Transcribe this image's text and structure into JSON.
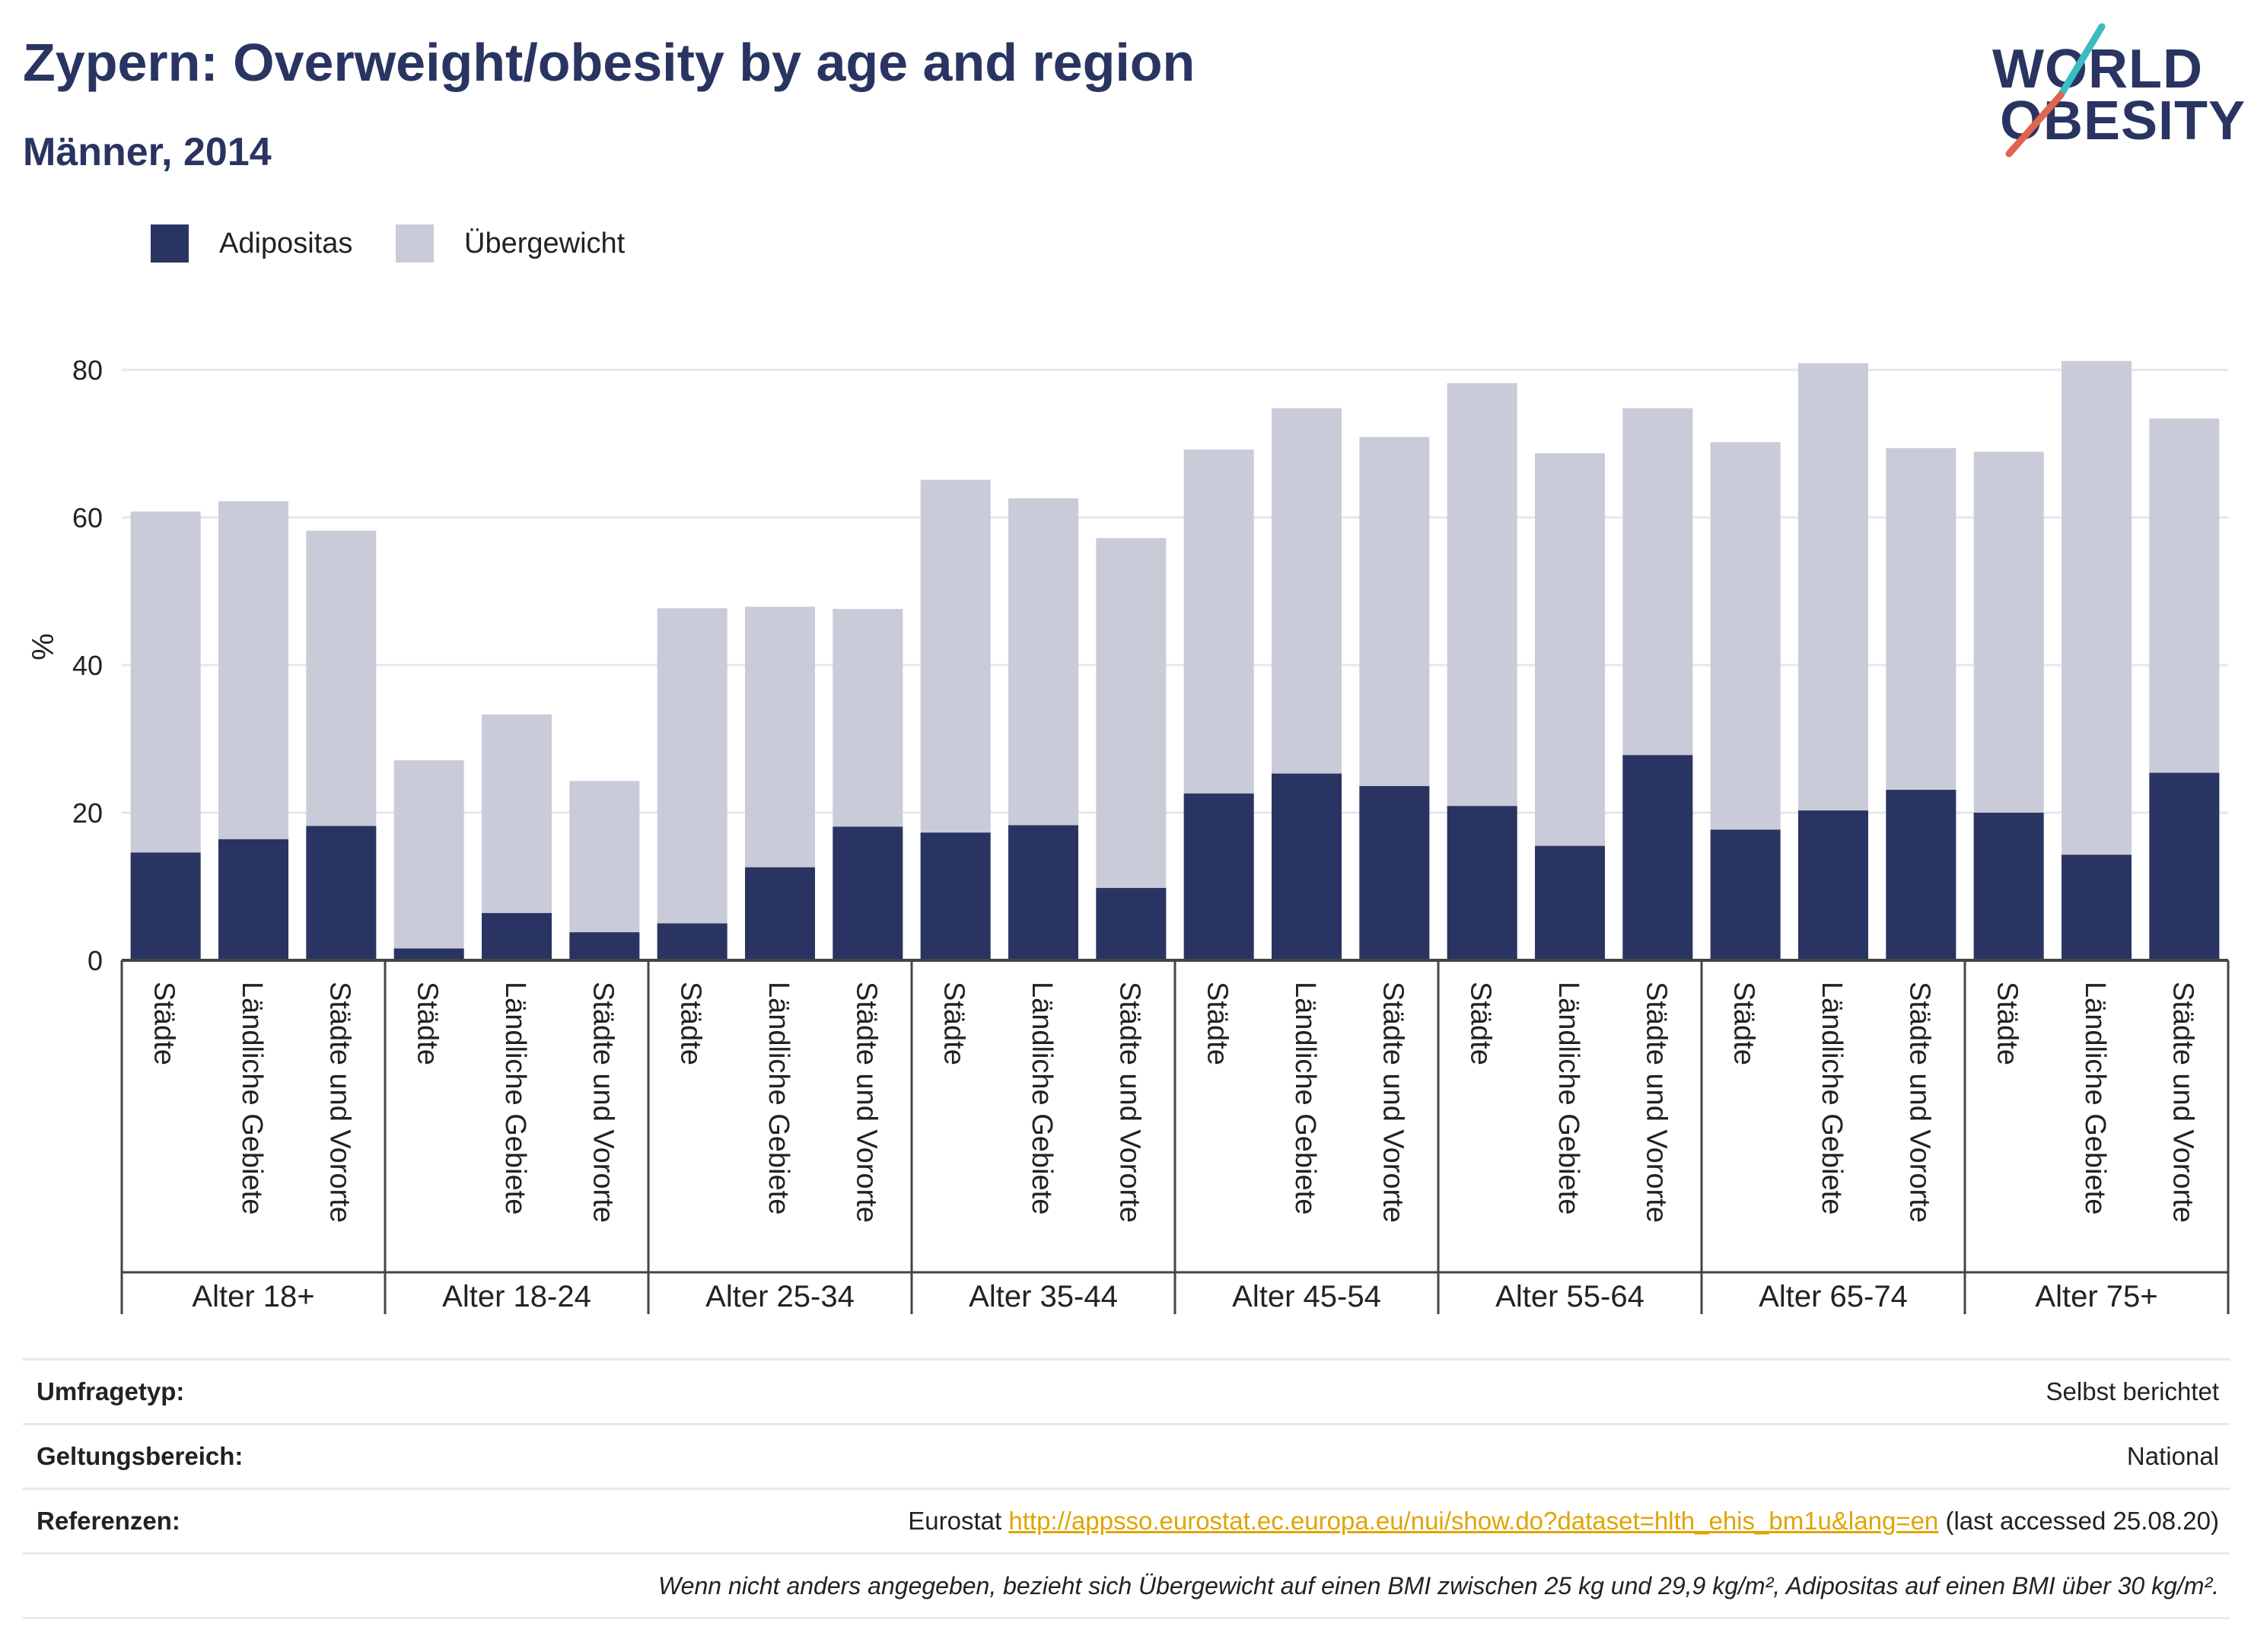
{
  "header": {
    "title": "Zypern: Overweight/obesity by age and region",
    "subtitle": "Männer, 2014"
  },
  "logo": {
    "line1": "WORLD",
    "line2": "OBESITY"
  },
  "colors": {
    "obesity": "#2a3462",
    "overweight": "#c9cbd8",
    "accent_teal": "#3bbcc0",
    "accent_red": "#e1644f",
    "link": "#e0a400"
  },
  "legend": [
    {
      "label": "Adipositas",
      "color": "#2a3462"
    },
    {
      "label": "Übergewicht",
      "color": "#c9cbd8"
    }
  ],
  "chart_data": {
    "type": "bar",
    "stacked": true,
    "ylabel": "%",
    "ylim": [
      0,
      80
    ],
    "yticks": [
      0,
      20,
      40,
      60,
      80
    ],
    "grid": true,
    "legend_position": "top-left",
    "groups": [
      {
        "label": "Alter 18+",
        "bars": [
          {
            "region": "Städte",
            "obesity": 14.6,
            "total": 60.8
          },
          {
            "region": "Ländliche Gebiete",
            "obesity": 16.4,
            "total": 62.2
          },
          {
            "region": "Städte und Vororte",
            "obesity": 18.2,
            "total": 58.2
          }
        ]
      },
      {
        "label": "Alter 18-24",
        "bars": [
          {
            "region": "Städte",
            "obesity": 1.6,
            "total": 27.1
          },
          {
            "region": "Ländliche Gebiete",
            "obesity": 6.4,
            "total": 33.3
          },
          {
            "region": "Städte und Vororte",
            "obesity": 3.8,
            "total": 24.3
          }
        ]
      },
      {
        "label": "Alter 25-34",
        "bars": [
          {
            "region": "Städte",
            "obesity": 5.0,
            "total": 47.7
          },
          {
            "region": "Ländliche Gebiete",
            "obesity": 12.6,
            "total": 47.9
          },
          {
            "region": "Städte und Vororte",
            "obesity": 18.1,
            "total": 47.6
          }
        ]
      },
      {
        "label": "Alter 35-44",
        "bars": [
          {
            "region": "Städte",
            "obesity": 17.3,
            "total": 65.1
          },
          {
            "region": "Ländliche Gebiete",
            "obesity": 18.3,
            "total": 62.6
          },
          {
            "region": "Städte und Vororte",
            "obesity": 9.8,
            "total": 57.2
          }
        ]
      },
      {
        "label": "Alter 45-54",
        "bars": [
          {
            "region": "Städte",
            "obesity": 22.6,
            "total": 69.2
          },
          {
            "region": "Ländliche Gebiete",
            "obesity": 25.3,
            "total": 74.8
          },
          {
            "region": "Städte und Vororte",
            "obesity": 23.6,
            "total": 70.9
          }
        ]
      },
      {
        "label": "Alter 55-64",
        "bars": [
          {
            "region": "Städte",
            "obesity": 20.9,
            "total": 78.2
          },
          {
            "region": "Ländliche Gebiete",
            "obesity": 15.5,
            "total": 68.7
          },
          {
            "region": "Städte und Vororte",
            "obesity": 27.8,
            "total": 74.8
          }
        ]
      },
      {
        "label": "Alter 65-74",
        "bars": [
          {
            "region": "Städte",
            "obesity": 17.7,
            "total": 70.2
          },
          {
            "region": "Ländliche Gebiete",
            "obesity": 20.3,
            "total": 80.9
          },
          {
            "region": "Städte und Vororte",
            "obesity": 23.1,
            "total": 69.4
          }
        ]
      },
      {
        "label": "Alter 75+",
        "bars": [
          {
            "region": "Städte",
            "obesity": 20.0,
            "total": 68.9
          },
          {
            "region": "Ländliche Gebiete",
            "obesity": 14.3,
            "total": 81.2
          },
          {
            "region": "Städte und Vororte",
            "obesity": 25.4,
            "total": 73.4
          }
        ]
      }
    ]
  },
  "info_table": {
    "survey_type_label": "Umfragetyp:",
    "survey_type_value": "Selbst berichtet",
    "scope_label": "Geltungsbereich:",
    "scope_value": "National",
    "references_label": "Referenzen:",
    "references_prefix": "Eurostat ",
    "references_link": "http://appsso.eurostat.ec.europa.eu/nui/show.do?dataset=hlth_ehis_bm1u&lang=en",
    "references_suffix": " (last accessed 25.08.20)",
    "note": "Wenn nicht anders angegeben, bezieht sich Übergewicht auf einen BMI zwischen 25 kg und 29,9 kg/m², Adipositas auf einen BMI über 30 kg/m²."
  }
}
